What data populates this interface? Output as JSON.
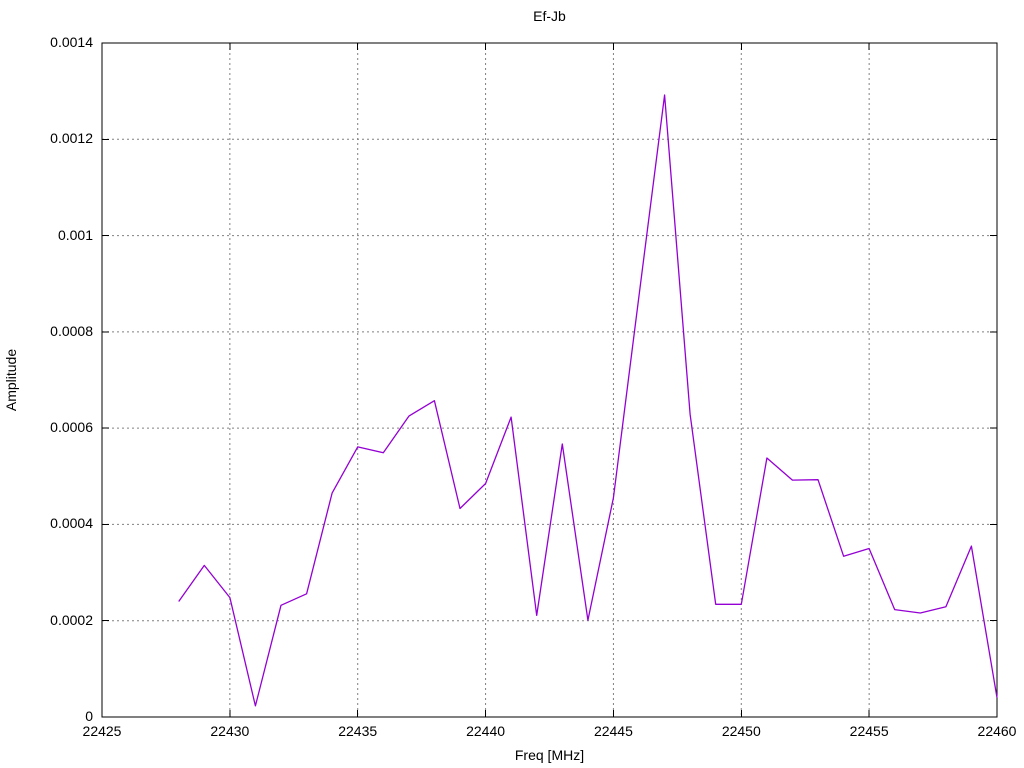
{
  "page": {
    "background": "#ffffff"
  },
  "chart_data": {
    "type": "line",
    "title": "Ef-Jb",
    "xlabel": "Freq [MHz]",
    "ylabel": "Amplitude",
    "xlim": [
      22425,
      22460
    ],
    "ylim": [
      0,
      0.0014
    ],
    "grid": true,
    "legend": "none",
    "xticks": {
      "values": [
        22425,
        22430,
        22435,
        22440,
        22445,
        22450,
        22455,
        22460
      ],
      "labels": [
        "22425",
        "22430",
        "22435",
        "22440",
        "22445",
        "22450",
        "22455",
        "22460"
      ]
    },
    "yticks": {
      "values": [
        0,
        0.0002,
        0.0004,
        0.0006,
        0.0008,
        0.001,
        0.0012,
        0.0014
      ],
      "labels": [
        "0",
        "0.0002",
        "0.0004",
        "0.0006",
        "0.0008",
        "0.001",
        "0.0012",
        "0.0014"
      ]
    },
    "series": [
      {
        "name": "Ef-Jb",
        "color": "#9400d3",
        "x": [
          22428,
          22429,
          22430,
          22431,
          22432,
          22433,
          22434,
          22435,
          22436,
          22437,
          22438,
          22439,
          22440,
          22441,
          22442,
          22443,
          22444,
          22445,
          22446,
          22447,
          22448,
          22449,
          22450,
          22451,
          22452,
          22453,
          22454,
          22455,
          22456,
          22457,
          22458,
          22459,
          22460
        ],
        "y": [
          0.00024,
          0.000315,
          0.000248,
          2.3e-05,
          0.000232,
          0.000256,
          0.000465,
          0.000561,
          0.000549,
          0.000625,
          0.000657,
          0.000433,
          0.000485,
          0.000623,
          0.000211,
          0.000567,
          0.000201,
          0.000455,
          0.000875,
          0.001292,
          0.000629,
          0.000234,
          0.000234,
          0.000538,
          0.000492,
          0.000493,
          0.000334,
          0.00035,
          0.000223,
          0.000216,
          0.000229,
          0.000355,
          4e-05
        ]
      }
    ]
  },
  "style": {
    "line_color": "#9400d3",
    "grid_color": "#808080",
    "axis_color": "#000000",
    "text_color": "#000000"
  }
}
